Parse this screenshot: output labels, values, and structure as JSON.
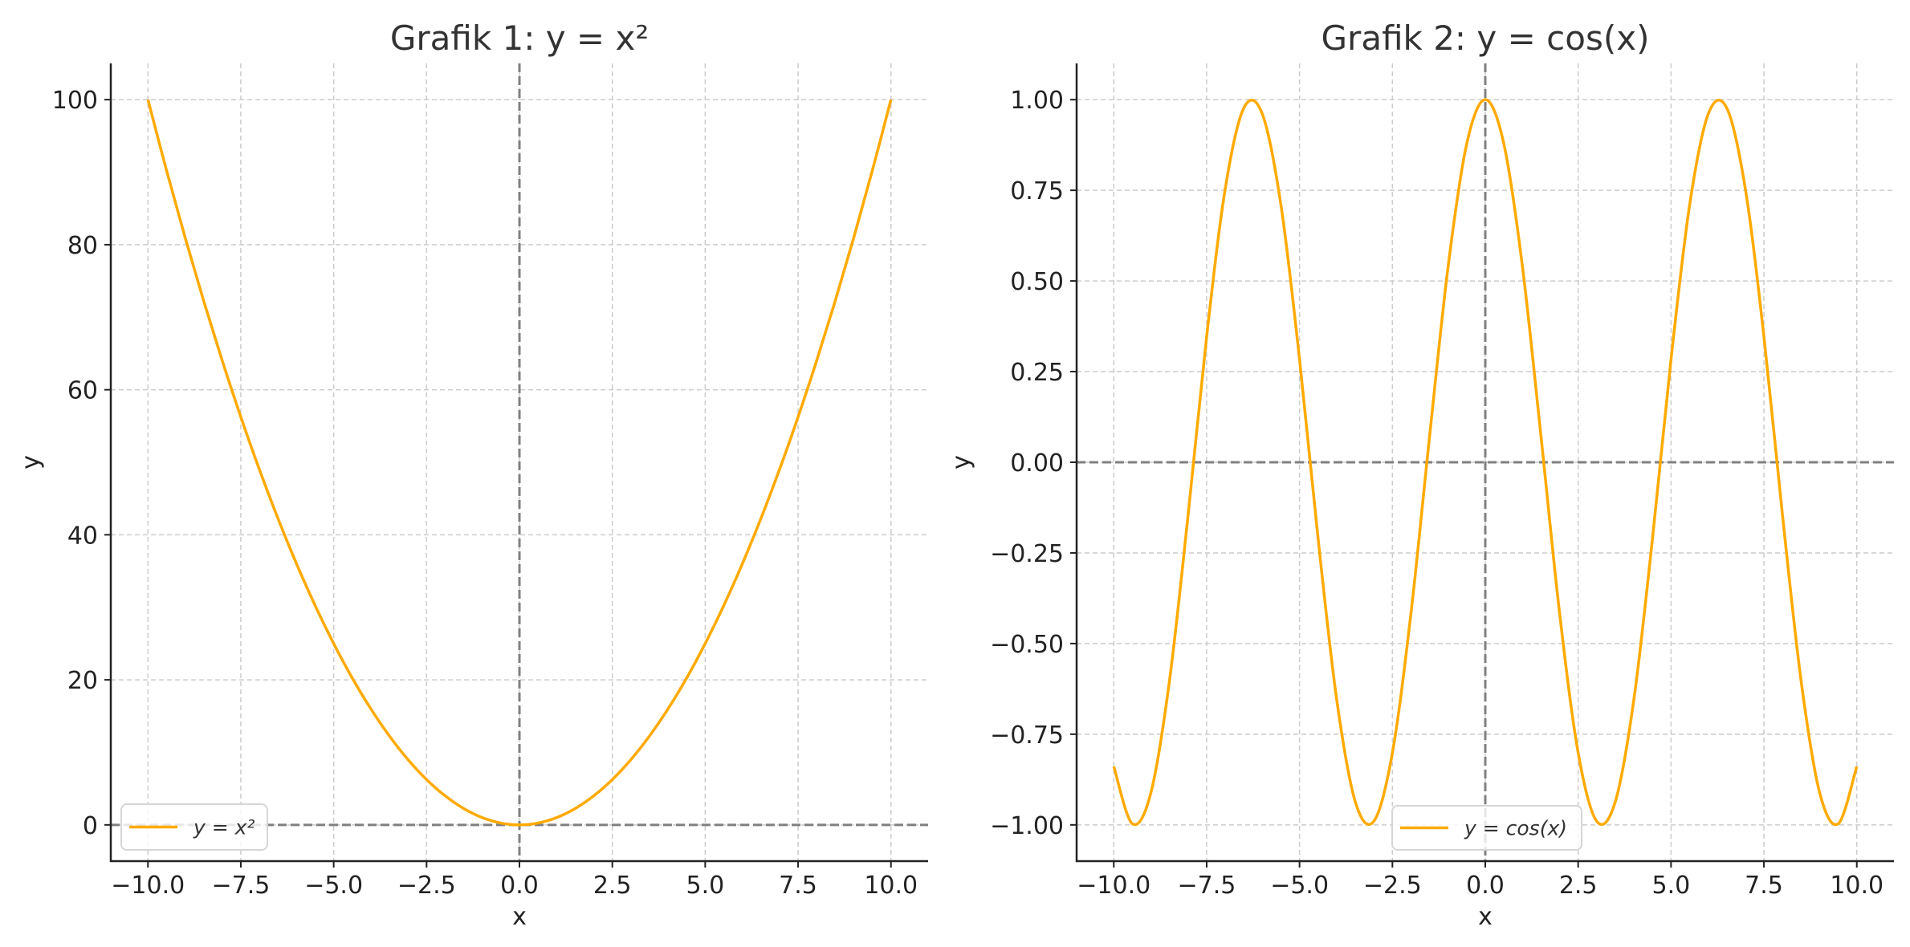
{
  "colors": {
    "line": "#FFAA00",
    "zero_line": "#808080",
    "grid": "#CCCCCC",
    "spine": "#222222"
  },
  "chart_data": [
    {
      "type": "line",
      "title": "Grafik 1: y = x²",
      "xlabel": "x",
      "ylabel": "y",
      "xlim": [
        -11,
        11
      ],
      "ylim": [
        -5,
        105
      ],
      "xticks": [
        -10,
        -7.5,
        -5,
        -2.5,
        0,
        2.5,
        5,
        7.5,
        10
      ],
      "xtick_labels": [
        "−10.0",
        "−7.5",
        "−5.0",
        "−2.5",
        "0.0",
        "2.5",
        "5.0",
        "7.5",
        "10.0"
      ],
      "yticks": [
        0,
        20,
        40,
        60,
        80,
        100
      ],
      "ytick_labels": [
        "0",
        "20",
        "40",
        "60",
        "80",
        "100"
      ],
      "grid": true,
      "zero_lines": {
        "x": 0,
        "y": 0,
        "style": "dashed"
      },
      "legend": {
        "placement": "lower-left",
        "entries": [
          "y = x²"
        ]
      },
      "series": [
        {
          "name": "y = x²",
          "x": [
            -10,
            -9.5,
            -9,
            -8.5,
            -8,
            -7.5,
            -7,
            -6.5,
            -6,
            -5.5,
            -5,
            -4.5,
            -4,
            -3.5,
            -3,
            -2.5,
            -2,
            -1.5,
            -1,
            -0.5,
            0,
            0.5,
            1,
            1.5,
            2,
            2.5,
            3,
            3.5,
            4,
            4.5,
            5,
            5.5,
            6,
            6.5,
            7,
            7.5,
            8,
            8.5,
            9,
            9.5,
            10
          ],
          "y": [
            100,
            90.25,
            81,
            72.25,
            64,
            56.25,
            49,
            42.25,
            36,
            30.25,
            25,
            20.25,
            16,
            12.25,
            9,
            6.25,
            4,
            2.25,
            1,
            0.25,
            0,
            0.25,
            1,
            2.25,
            4,
            6.25,
            9,
            12.25,
            16,
            20.25,
            25,
            30.25,
            36,
            42.25,
            49,
            56.25,
            64,
            72.25,
            81,
            90.25,
            100
          ]
        }
      ]
    },
    {
      "type": "line",
      "title": "Grafik 2: y = cos(x)",
      "xlabel": "x",
      "ylabel": "y",
      "xlim": [
        -11,
        11
      ],
      "ylim": [
        -1.1,
        1.1
      ],
      "xticks": [
        -10,
        -7.5,
        -5,
        -2.5,
        0,
        2.5,
        5,
        7.5,
        10
      ],
      "xtick_labels": [
        "−10.0",
        "−7.5",
        "−5.0",
        "−2.5",
        "0.0",
        "2.5",
        "5.0",
        "7.5",
        "10.0"
      ],
      "yticks": [
        -1,
        -0.75,
        -0.5,
        -0.25,
        0,
        0.25,
        0.5,
        0.75,
        1
      ],
      "ytick_labels": [
        "−1.00",
        "−0.75",
        "−0.50",
        "−0.25",
        "0.00",
        "0.25",
        "0.50",
        "0.75",
        "1.00"
      ],
      "grid": true,
      "zero_lines": {
        "x": 0,
        "y": 0,
        "style": "dashed"
      },
      "legend": {
        "placement": "lower-center",
        "entries": [
          "y = cos(x)"
        ]
      },
      "series": [
        {
          "name": "y = cos(x)",
          "x": [
            -10,
            -9.5,
            -9,
            -8.5,
            -8,
            -7.5,
            -7,
            -6.5,
            -6,
            -5.5,
            -5,
            -4.5,
            -4,
            -3.5,
            -3,
            -2.5,
            -2,
            -1.5,
            -1,
            -0.5,
            0,
            0.5,
            1,
            1.5,
            2,
            2.5,
            3,
            3.5,
            4,
            4.5,
            5,
            5.5,
            6,
            6.5,
            7,
            7.5,
            8,
            8.5,
            9,
            9.5,
            10
          ],
          "y": [
            -0.839,
            -0.997,
            -0.911,
            -0.602,
            -0.146,
            0.347,
            0.754,
            0.977,
            0.96,
            0.709,
            0.284,
            -0.211,
            -0.654,
            -0.936,
            -0.99,
            -0.801,
            -0.416,
            0.071,
            0.54,
            0.878,
            1,
            0.878,
            0.54,
            0.071,
            -0.416,
            -0.801,
            -0.99,
            -0.936,
            -0.654,
            -0.211,
            0.284,
            0.709,
            0.96,
            0.977,
            0.754,
            0.347,
            -0.146,
            -0.602,
            -0.911,
            -0.997,
            -0.839
          ]
        }
      ]
    }
  ]
}
